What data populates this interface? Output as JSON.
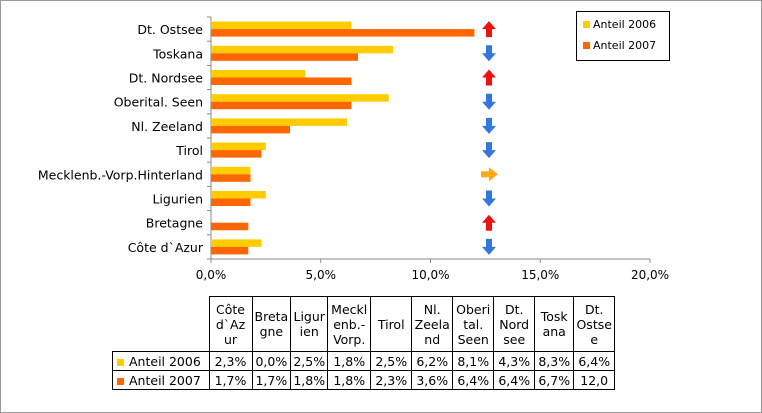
{
  "chart_data": {
    "type": "bar",
    "orientation": "horizontal",
    "categories": [
      "Dt. Ostsee",
      "Toskana",
      "Dt. Nordsee",
      "Oberital. Seen",
      "Nl. Zeeland",
      "Tirol",
      "Mecklenb.-Vorp.Hinterland",
      "Ligurien",
      "Bretagne",
      "Côte d`Azur"
    ],
    "series": [
      {
        "name": "Anteil 2006",
        "color": "#FFCC00",
        "values": [
          6.4,
          8.3,
          4.3,
          8.1,
          6.2,
          2.5,
          1.8,
          2.5,
          0.0,
          2.3
        ]
      },
      {
        "name": "Anteil 2007",
        "color": "#FF6600",
        "values": [
          12.0,
          6.7,
          6.4,
          6.4,
          3.6,
          2.3,
          1.8,
          1.8,
          1.7,
          1.7
        ]
      }
    ],
    "trend_icons": [
      "arrow-up-icon",
      "arrow-down-icon",
      "arrow-up-icon",
      "arrow-down-icon",
      "arrow-down-icon",
      "arrow-down-icon",
      "arrow-right-icon",
      "arrow-down-icon",
      "arrow-up-icon",
      "arrow-down-icon"
    ],
    "trend_colors": {
      "up": "#EE1111",
      "down": "#3377DD",
      "flat": "#FFAA11"
    },
    "xlim": [
      0,
      20
    ],
    "xticks": [
      "0,0%",
      "5,0%",
      "10,0%",
      "15,0%",
      "20,0%"
    ],
    "grid": false,
    "legend_position": "top-right",
    "table": {
      "columns": [
        "Côte d`Az ur",
        "Breta gne",
        "Ligur ien",
        "Meckl enb.- Vorp.",
        "Tirol",
        "Nl. Zeela nd",
        "Oberi tal. Seen",
        "Dt. Nord see",
        "Tosk ana",
        "Dt. Ostse e"
      ],
      "rows": [
        {
          "label": "Anteil 2006",
          "values": [
            "2,3%",
            "0,0%",
            "2,5%",
            "1,8%",
            "2,5%",
            "6,2%",
            "8,1%",
            "4,3%",
            "8,3%",
            "6,4%"
          ]
        },
        {
          "label": "Anteil 2007",
          "values": [
            "1,7%",
            "1,7%",
            "1,8%",
            "1,8%",
            "2,3%",
            "3,6%",
            "6,4%",
            "6,4%",
            "6,7%",
            "12,0"
          ]
        }
      ]
    }
  }
}
